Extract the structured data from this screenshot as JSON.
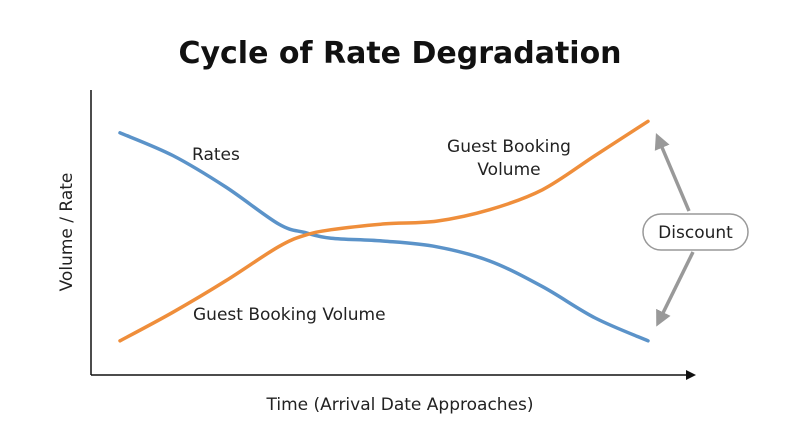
{
  "chart_data": {
    "type": "line",
    "title": "Cycle of Rate Degradation",
    "xlabel": "Time (Arrival Date Approaches)",
    "ylabel": "Volume / Rate",
    "xlim": [
      0,
      100
    ],
    "ylim": [
      0,
      100
    ],
    "grid": false,
    "series": [
      {
        "name": "Rates",
        "color": "#5b93c9",
        "x": [
          0,
          10,
          20,
          30,
          35,
          40,
          50,
          60,
          70,
          80,
          90,
          100
        ],
        "y": [
          85,
          77,
          66,
          53,
          50,
          48,
          47,
          45,
          40,
          31,
          20,
          12
        ]
      },
      {
        "name": "Guest Booking Volume",
        "color": "#ef8e3b",
        "x": [
          0,
          10,
          20,
          30,
          35,
          40,
          50,
          60,
          70,
          80,
          90,
          100
        ],
        "y": [
          12,
          22,
          33,
          45,
          49,
          51,
          53,
          54,
          58,
          65,
          77,
          89
        ]
      }
    ],
    "annotations": {
      "rates_label": "Rates",
      "volume_top_label_line1": "Guest Booking",
      "volume_top_label_line2": "Volume",
      "volume_bottom_label": "Guest Booking Volume",
      "discount_label": "Discount"
    },
    "arrow_color": "#999999"
  }
}
